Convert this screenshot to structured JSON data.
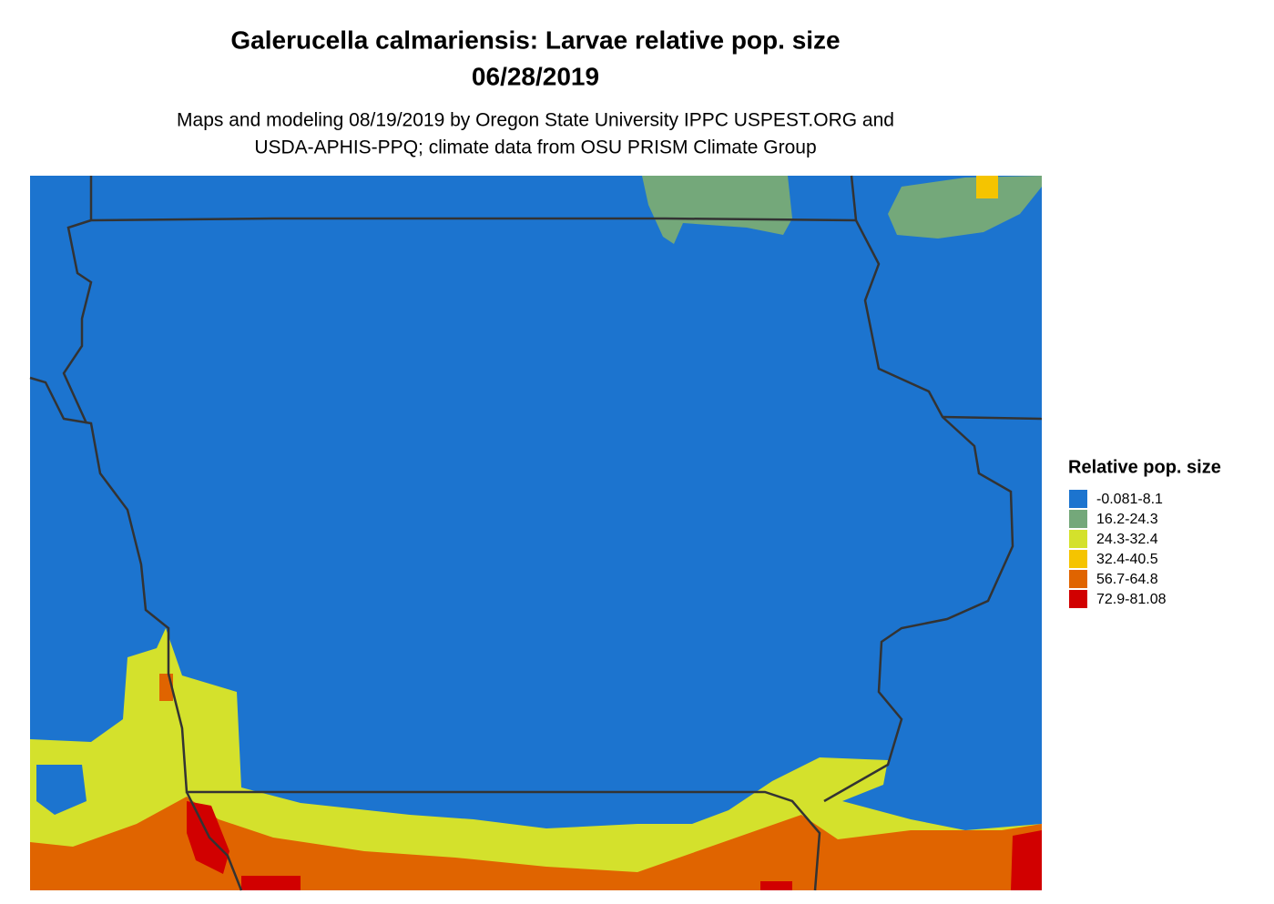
{
  "title": [
    "Galerucella calmariensis: Larvae relative pop. size",
    "06/28/2019"
  ],
  "subtitle": [
    "Maps and modeling 08/19/2019 by Oregon State University IPPC USPEST.ORG and",
    "USDA-APHIS-PPQ; climate data from OSU PRISM Climate Group"
  ],
  "legend": {
    "title": "Relative pop. size",
    "items": [
      {
        "label": "-0.081-8.1",
        "color": "#1c74cf"
      },
      {
        "label": "16.2-24.3",
        "color": "#74a87a"
      },
      {
        "label": "24.3-32.4",
        "color": "#d4e12c"
      },
      {
        "label": "32.4-40.5",
        "color": "#f5c400"
      },
      {
        "label": "56.7-64.8",
        "color": "#e06400"
      },
      {
        "label": "72.9-81.08",
        "color": "#d10000"
      }
    ]
  }
}
